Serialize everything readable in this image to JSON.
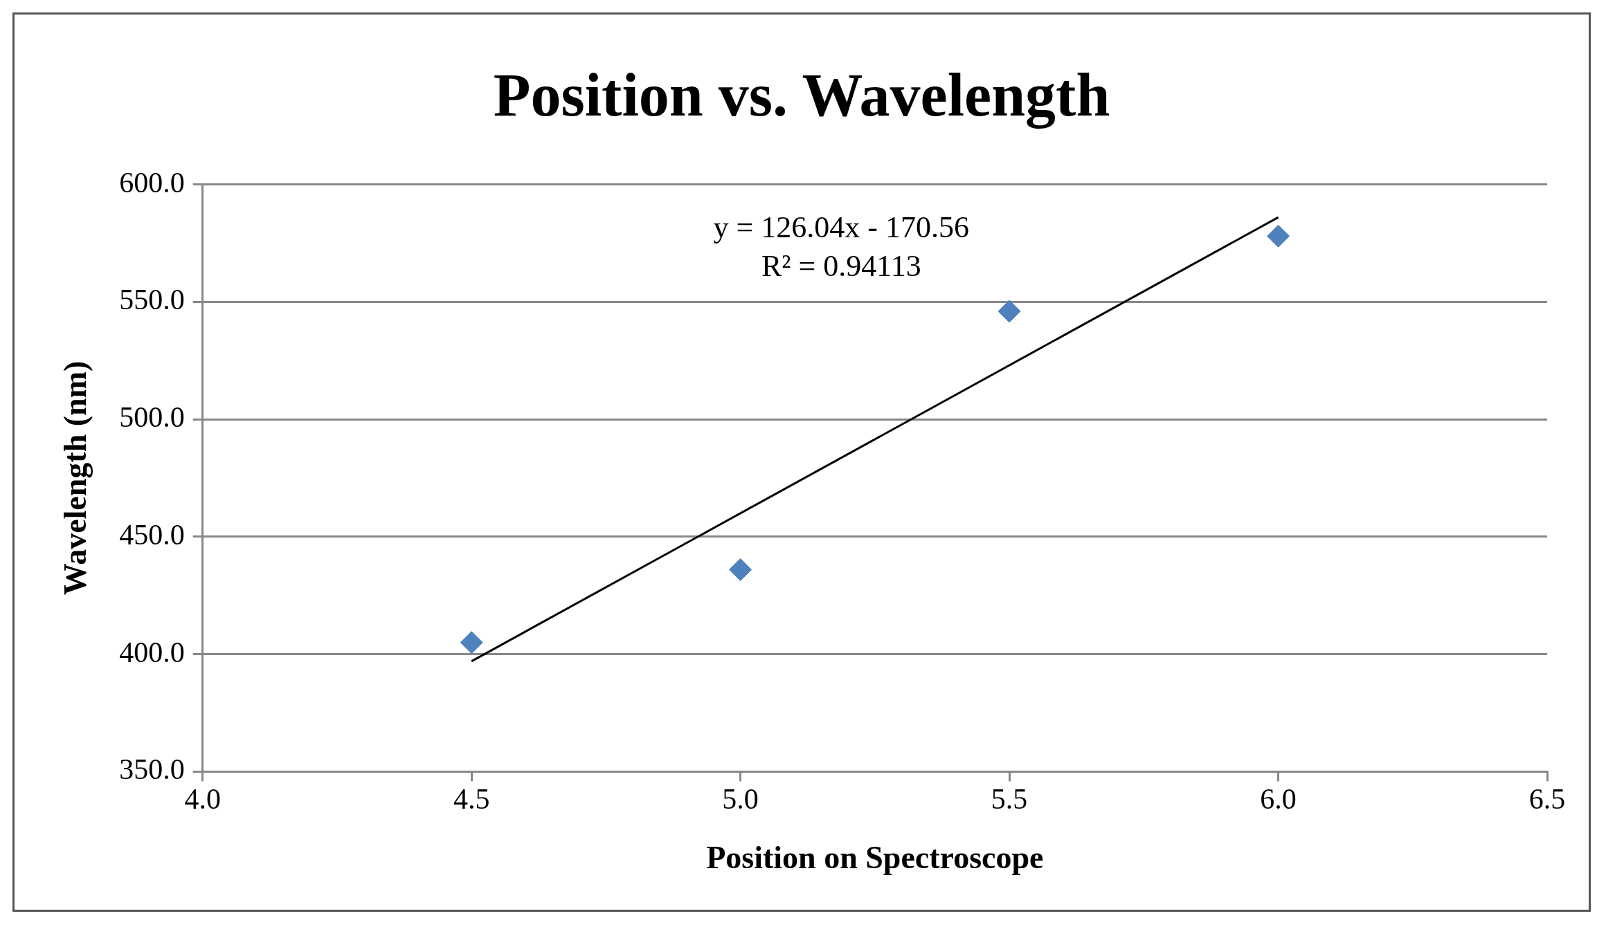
{
  "chart_data": {
    "type": "scatter",
    "title": "Position vs. Wavelength",
    "xlabel": "Position on Spectroscope",
    "ylabel": "Wavelength (nm)",
    "xlim": [
      4.0,
      6.5
    ],
    "xticks": [
      {
        "value": 4.0,
        "label": "4.0"
      },
      {
        "value": 4.5,
        "label": "4.5"
      },
      {
        "value": 5.0,
        "label": "5.0"
      },
      {
        "value": 5.5,
        "label": "5.5"
      },
      {
        "value": 6.0,
        "label": "6.0"
      },
      {
        "value": 6.5,
        "label": "6.5"
      }
    ],
    "ylim": [
      350,
      600
    ],
    "yticks": [
      {
        "value": 350,
        "label": "350.0"
      },
      {
        "value": 400,
        "label": "400.0"
      },
      {
        "value": 450,
        "label": "450.0"
      },
      {
        "value": 500,
        "label": "500.0"
      },
      {
        "value": 550,
        "label": "550.0"
      },
      {
        "value": 600,
        "label": "600.0"
      }
    ],
    "grid": "y",
    "legend": false,
    "marker": "diamond",
    "series": [
      {
        "type": "scatter",
        "color": "#4f81bd",
        "x": [
          4.5,
          5.0,
          5.5,
          6.0
        ],
        "values": [
          405,
          436,
          546,
          578
        ]
      },
      {
        "type": "line",
        "color": "#000000",
        "marker": "none",
        "x": [
          4.5,
          6.0
        ],
        "values": [
          397,
          586
        ]
      }
    ],
    "annotations": [
      "y = 126.04x - 170.56",
      "R² = 0.94113"
    ]
  }
}
